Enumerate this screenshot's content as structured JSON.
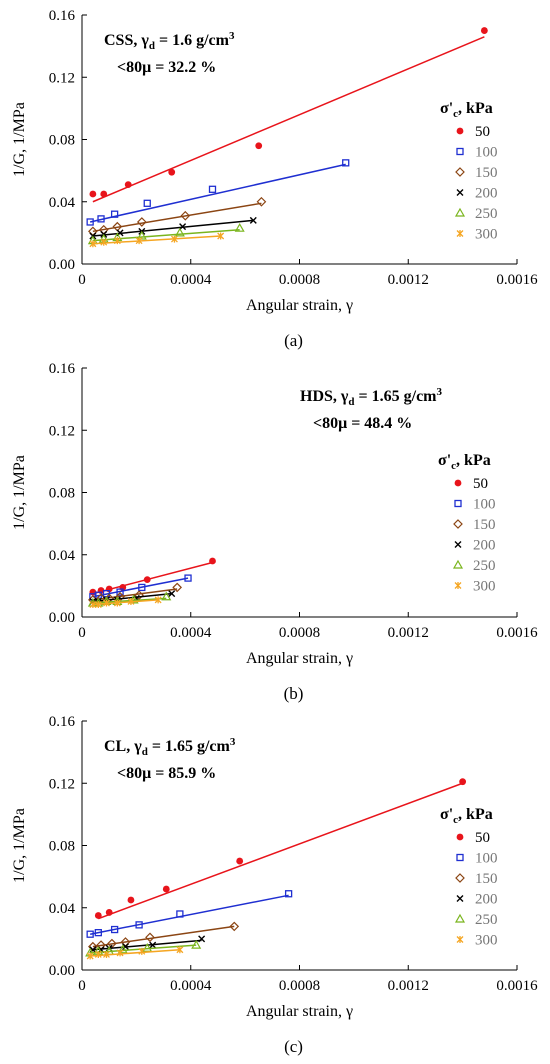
{
  "chart_data": [
    {
      "type": "scatter",
      "panel_label": "(a)",
      "title_line1": "CSS, γ",
      "title_sub": "d",
      "title_rest": " = 1.6 g/cm",
      "title_sup": "3",
      "title_line2": "<80μ = 32.2 %",
      "xlabel": "Angular strain, γ",
      "ylabel": "1/G, 1/MPa",
      "xlim": [
        0,
        0.0016
      ],
      "ylim": [
        0,
        0.16
      ],
      "xticks": [
        "0",
        "0.0004",
        "0.0008",
        "0.0012",
        "0.0016"
      ],
      "yticks": [
        "0.00",
        "0.04",
        "0.08",
        "0.12",
        "0.16"
      ],
      "legend_title": "σ'c, kPa",
      "legend_position": "right",
      "grid": false,
      "series": [
        {
          "name": "50",
          "color": "#e8141b",
          "marker": "circle",
          "points": [
            [
              4e-05,
              0.045
            ],
            [
              8e-05,
              0.045
            ],
            [
              0.00017,
              0.051
            ],
            [
              0.00033,
              0.059
            ],
            [
              0.00065,
              0.076
            ],
            [
              0.00148,
              0.15
            ]
          ],
          "fit": [
            [
              4e-05,
              0.04
            ],
            [
              0.00148,
              0.146
            ]
          ]
        },
        {
          "name": "100",
          "color": "#1f2fd1",
          "marker": "square",
          "points": [
            [
              3e-05,
              0.027
            ],
            [
              7e-05,
              0.029
            ],
            [
              0.00012,
              0.032
            ],
            [
              0.00024,
              0.039
            ],
            [
              0.00048,
              0.048
            ],
            [
              0.00097,
              0.065
            ]
          ],
          "fit": [
            [
              3e-05,
              0.027
            ],
            [
              0.00097,
              0.064
            ]
          ]
        },
        {
          "name": "150",
          "color": "#8b4513",
          "marker": "diamond",
          "points": [
            [
              4e-05,
              0.021
            ],
            [
              8e-05,
              0.022
            ],
            [
              0.00013,
              0.024
            ],
            [
              0.00022,
              0.027
            ],
            [
              0.00038,
              0.031
            ],
            [
              0.00066,
              0.04
            ]
          ],
          "fit": [
            [
              4e-05,
              0.021
            ],
            [
              0.00066,
              0.039
            ]
          ]
        },
        {
          "name": "200",
          "color": "#000000",
          "marker": "x",
          "points": [
            [
              4e-05,
              0.018
            ],
            [
              8e-05,
              0.019
            ],
            [
              0.00014,
              0.02
            ],
            [
              0.00022,
              0.021
            ],
            [
              0.00037,
              0.024
            ],
            [
              0.00063,
              0.028
            ]
          ],
          "fit": [
            [
              4e-05,
              0.018
            ],
            [
              0.00063,
              0.028
            ]
          ]
        },
        {
          "name": "250",
          "color": "#7ab51d",
          "marker": "triangle",
          "points": [
            [
              4e-05,
              0.015
            ],
            [
              8e-05,
              0.016
            ],
            [
              0.00013,
              0.017
            ],
            [
              0.00022,
              0.018
            ],
            [
              0.00036,
              0.02
            ],
            [
              0.00058,
              0.023
            ]
          ],
          "fit": [
            [
              4e-05,
              0.015
            ],
            [
              0.00058,
              0.022
            ]
          ]
        },
        {
          "name": "300",
          "color": "#f5a623",
          "marker": "star",
          "points": [
            [
              4e-05,
              0.013
            ],
            [
              8e-05,
              0.014
            ],
            [
              0.00013,
              0.015
            ],
            [
              0.00021,
              0.015
            ],
            [
              0.00034,
              0.016
            ],
            [
              0.00051,
              0.018
            ]
          ],
          "fit": [
            [
              4e-05,
              0.013
            ],
            [
              0.00051,
              0.018
            ]
          ]
        }
      ]
    },
    {
      "type": "scatter",
      "panel_label": "(b)",
      "title_line1": "HDS, γ",
      "title_sub": "d",
      "title_rest": " = 1.65 g/cm",
      "title_sup": "3",
      "title_line2": "<80μ = 48.4 %",
      "xlabel": "Angular strain, γ",
      "ylabel": "1/G, 1/MPa",
      "xlim": [
        0,
        0.0016
      ],
      "ylim": [
        0,
        0.16
      ],
      "xticks": [
        "0",
        "0.0004",
        "0.0008",
        "0.0012",
        "0.0016"
      ],
      "yticks": [
        "0.00",
        "0.04",
        "0.08",
        "0.12",
        "0.16"
      ],
      "legend_title": "σ'c, kPa",
      "legend_position": "right",
      "grid": false,
      "series": [
        {
          "name": "50",
          "color": "#e8141b",
          "marker": "circle",
          "points": [
            [
              4e-05,
              0.016
            ],
            [
              7e-05,
              0.017
            ],
            [
              0.0001,
              0.018
            ],
            [
              0.00015,
              0.019
            ],
            [
              0.00024,
              0.024
            ],
            [
              0.00048,
              0.036
            ]
          ],
          "fit": [
            [
              4e-05,
              0.015
            ],
            [
              0.00048,
              0.035
            ]
          ]
        },
        {
          "name": "100",
          "color": "#1f2fd1",
          "marker": "square",
          "points": [
            [
              4e-05,
              0.013
            ],
            [
              6e-05,
              0.014
            ],
            [
              9e-05,
              0.015
            ],
            [
              0.00014,
              0.016
            ],
            [
              0.00022,
              0.019
            ],
            [
              0.00039,
              0.025
            ]
          ],
          "fit": [
            [
              4e-05,
              0.013
            ],
            [
              0.00039,
              0.025
            ]
          ]
        },
        {
          "name": "150",
          "color": "#8b4513",
          "marker": "diamond",
          "points": [
            [
              4e-05,
              0.011
            ],
            [
              7e-05,
              0.012
            ],
            [
              0.0001,
              0.012
            ],
            [
              0.00014,
              0.013
            ],
            [
              0.00021,
              0.014
            ],
            [
              0.00035,
              0.019
            ]
          ],
          "fit": [
            [
              4e-05,
              0.011
            ],
            [
              0.00035,
              0.018
            ]
          ]
        },
        {
          "name": "200",
          "color": "#000000",
          "marker": "x",
          "points": [
            [
              4e-05,
              0.01
            ],
            [
              6e-05,
              0.01
            ],
            [
              9e-05,
              0.011
            ],
            [
              0.00013,
              0.011
            ],
            [
              0.0002,
              0.012
            ],
            [
              0.00033,
              0.015
            ]
          ],
          "fit": [
            [
              4e-05,
              0.01
            ],
            [
              0.00033,
              0.015
            ]
          ]
        },
        {
          "name": "250",
          "color": "#7ab51d",
          "marker": "triangle",
          "points": [
            [
              4e-05,
              0.009
            ],
            [
              6e-05,
              0.009
            ],
            [
              9e-05,
              0.01
            ],
            [
              0.00013,
              0.01
            ],
            [
              0.00019,
              0.011
            ],
            [
              0.00031,
              0.013
            ]
          ],
          "fit": [
            [
              4e-05,
              0.009
            ],
            [
              0.00031,
              0.012
            ]
          ]
        },
        {
          "name": "300",
          "color": "#f5a623",
          "marker": "star",
          "points": [
            [
              4e-05,
              0.008
            ],
            [
              6e-05,
              0.008
            ],
            [
              9e-05,
              0.009
            ],
            [
              0.00013,
              0.009
            ],
            [
              0.00018,
              0.01
            ],
            [
              0.00028,
              0.011
            ]
          ],
          "fit": [
            [
              4e-05,
              0.008
            ],
            [
              0.00028,
              0.011
            ]
          ]
        }
      ]
    },
    {
      "type": "scatter",
      "panel_label": "(c)",
      "title_line1": "CL, γ",
      "title_sub": "d",
      "title_rest": " = 1.65 g/cm",
      "title_sup": "3",
      "title_line2": "<80μ = 85.9 %",
      "xlabel": "Angular strain, γ",
      "ylabel": "1/G, 1/MPa",
      "xlim": [
        0,
        0.0016
      ],
      "ylim": [
        0,
        0.16
      ],
      "xticks": [
        "0",
        "0.0004",
        "0.0008",
        "0.0012",
        "0.0016"
      ],
      "yticks": [
        "0.00",
        "0.04",
        "0.08",
        "0.12",
        "0.16"
      ],
      "legend_title": "σ'c, kPa",
      "legend_position": "right",
      "grid": false,
      "series": [
        {
          "name": "50",
          "color": "#e8141b",
          "marker": "circle",
          "points": [
            [
              6e-05,
              0.035
            ],
            [
              0.0001,
              0.037
            ],
            [
              0.00018,
              0.045
            ],
            [
              0.00031,
              0.052
            ],
            [
              0.00058,
              0.07
            ],
            [
              0.0014,
              0.121
            ]
          ],
          "fit": [
            [
              6e-05,
              0.033
            ],
            [
              0.0014,
              0.12
            ]
          ]
        },
        {
          "name": "100",
          "color": "#1f2fd1",
          "marker": "square",
          "points": [
            [
              3e-05,
              0.023
            ],
            [
              6e-05,
              0.024
            ],
            [
              0.00012,
              0.026
            ],
            [
              0.00021,
              0.029
            ],
            [
              0.00036,
              0.036
            ],
            [
              0.00076,
              0.049
            ]
          ],
          "fit": [
            [
              3e-05,
              0.023
            ],
            [
              0.00076,
              0.048
            ]
          ]
        },
        {
          "name": "150",
          "color": "#8b4513",
          "marker": "diamond",
          "points": [
            [
              4e-05,
              0.015
            ],
            [
              7e-05,
              0.016
            ],
            [
              0.00011,
              0.017
            ],
            [
              0.00016,
              0.018
            ],
            [
              0.00025,
              0.021
            ],
            [
              0.00056,
              0.028
            ]
          ],
          "fit": [
            [
              4e-05,
              0.015
            ],
            [
              0.00056,
              0.028
            ]
          ]
        },
        {
          "name": "200",
          "color": "#000000",
          "marker": "x",
          "points": [
            [
              4e-05,
              0.013
            ],
            [
              7e-05,
              0.013
            ],
            [
              0.0001,
              0.014
            ],
            [
              0.00016,
              0.015
            ],
            [
              0.00026,
              0.016
            ],
            [
              0.00044,
              0.02
            ]
          ],
          "fit": [
            [
              4e-05,
              0.013
            ],
            [
              0.00044,
              0.019
            ]
          ]
        },
        {
          "name": "250",
          "color": "#7ab51d",
          "marker": "triangle",
          "points": [
            [
              3e-05,
              0.011
            ],
            [
              6e-05,
              0.012
            ],
            [
              0.0001,
              0.012
            ],
            [
              0.00015,
              0.013
            ],
            [
              0.00024,
              0.014
            ],
            [
              0.00042,
              0.016
            ]
          ],
          "fit": [
            [
              3e-05,
              0.011
            ],
            [
              0.00042,
              0.016
            ]
          ]
        },
        {
          "name": "300",
          "color": "#f5a623",
          "marker": "star",
          "points": [
            [
              3e-05,
              0.009
            ],
            [
              6e-05,
              0.01
            ],
            [
              9e-05,
              0.01
            ],
            [
              0.00014,
              0.011
            ],
            [
              0.00022,
              0.012
            ],
            [
              0.00036,
              0.013
            ]
          ],
          "fit": [
            [
              3e-05,
              0.009
            ],
            [
              0.00036,
              0.013
            ]
          ]
        }
      ]
    }
  ]
}
